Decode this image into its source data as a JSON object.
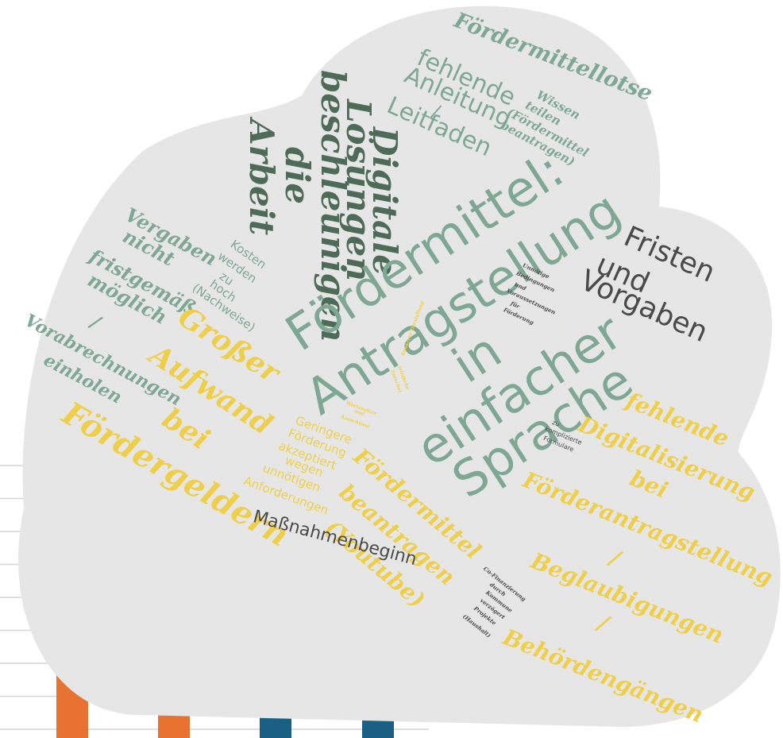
{
  "colors": {
    "cloud": "#e6e6e6",
    "green_light": "#7ea894",
    "green_dark": "#4e6b58",
    "gray_dark": "#4a4a4a",
    "yellow": "#efcf4a",
    "orange": "#e87230",
    "blue": "#1a5f84",
    "gridline": "#d4d4d4"
  },
  "words": {
    "foerdermittellotse": "Fördermittellotse",
    "fehlende": "fehlende",
    "anleitung": "Anleitung",
    "slash1": "/",
    "leitfaden": "Leitfaden",
    "wissen": "Wissen",
    "teilen": "teilen",
    "foerdermittel_paren": "(Fördermittel",
    "beantragen_paren": "beantragen)",
    "digitale": "Digitale",
    "loesungen": "Lösungen",
    "beschleunigen": "beschleunigen",
    "die": "die",
    "arbeit": "Arbeit",
    "main1": "Fördermittel:",
    "main2": "Antragstellung",
    "main3": "in",
    "main4": "einfacher",
    "main5": "Sprache",
    "fristen": "Fristen",
    "und": "und",
    "vorgaben": "Vorgaben",
    "vergaben": "Vergaben",
    "nicht": "nicht",
    "fristgemaess": "fristgemäß",
    "moeglich": "möglich",
    "slash2": "/",
    "vorabrechnungen": "Vorabrechnungen",
    "einholen": "einholen",
    "kosten": "Kosten",
    "werden": "werden",
    "zu": "zu",
    "hoch": "hoch",
    "nachweise": "(Nachweise)",
    "grosser": "Großer",
    "aufwand": "Aufwand",
    "bei": "bei",
    "foerdergeldern": "Fördergeldern",
    "unnoetige1": "Unnötige",
    "unnoetige2": "Bedingungen",
    "unnoetige3": "und",
    "unnoetige4": "Voraussetzungen",
    "unnoetige5": "für",
    "unnoetige6": "Förderung",
    "small_a1": "Konkrete Darstellung",
    "small_a2": "(einfache",
    "small_a3": "Sprache)",
    "small_b1": "Wartezeiten",
    "small_b2": "und",
    "small_b3": "Ausschüsse",
    "geringere": "Geringere",
    "foerderung": "Förderung",
    "akzeptiert": "akzeptiert",
    "wegen": "wegen",
    "unnoetigen": "unnötigen",
    "anforderungen": "Anforderungen",
    "fm_beantragen1": "Fördermittel",
    "fm_beantragen2": "beantragen",
    "youtube": "(Youtube)",
    "massnahmenbeginn": "Maßnahmenbeginn",
    "zu_kompl1": "zu",
    "zu_kompl2": "komplizierte",
    "zu_kompl3": "Formulare",
    "fehlende2": "fehlende",
    "digitalisierung": "Digitalisierung",
    "bei2": "bei",
    "foerderantragstellung": "Förderantragstellung",
    "slash3": "/",
    "beglaubigungen": "Beglaubigungen",
    "slash4": "/",
    "behoerdengaengen": "Behördengängen",
    "cofin1": "Co-Finanzierung",
    "cofin2": "durch",
    "cofin3": "Kommune",
    "cofin4": "verzögert",
    "cofin5": "Projekte",
    "cofin6": "(Haushalt)"
  },
  "chart_data": {
    "type": "bar",
    "categories": [
      "",
      "",
      "",
      ""
    ],
    "series": [
      {
        "values": [
          2.3,
          1.3,
          1.3,
          1.3
        ]
      }
    ],
    "bar_colors": [
      "#e87230",
      "#e87230",
      "#1a5f84",
      "#1a5f84"
    ],
    "gridline_count": 9,
    "grid": true
  }
}
